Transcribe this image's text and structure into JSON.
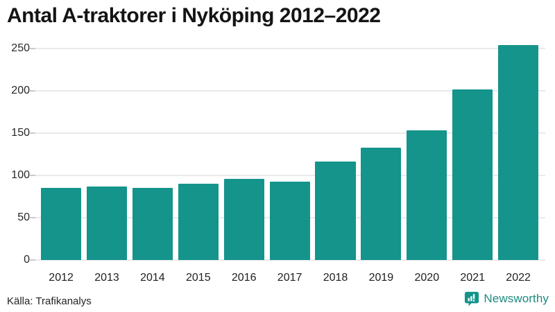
{
  "chart_data": {
    "type": "bar",
    "title": "Antal A-traktorer i Nyköping 2012–2022",
    "categories": [
      "2012",
      "2013",
      "2014",
      "2015",
      "2016",
      "2017",
      "2018",
      "2019",
      "2020",
      "2021",
      "2022"
    ],
    "values": [
      85,
      87,
      85,
      90,
      96,
      93,
      116,
      133,
      153,
      202,
      254
    ],
    "yticks": [
      0,
      50,
      100,
      150,
      200,
      250
    ],
    "ylim": [
      0,
      258
    ],
    "xlabel": "",
    "ylabel": "",
    "grid": "horizontal",
    "legend": "none",
    "bar_color": "#14948B",
    "gridline_color": "#e9e9ee"
  },
  "source": {
    "label": "Källa: Trafikanalys"
  },
  "brand": {
    "name": "Newsworthy",
    "color": "#1d8a80",
    "icon": "newsworthy-speech-bubble-barchart-icon",
    "icon_color": "#14948B"
  }
}
